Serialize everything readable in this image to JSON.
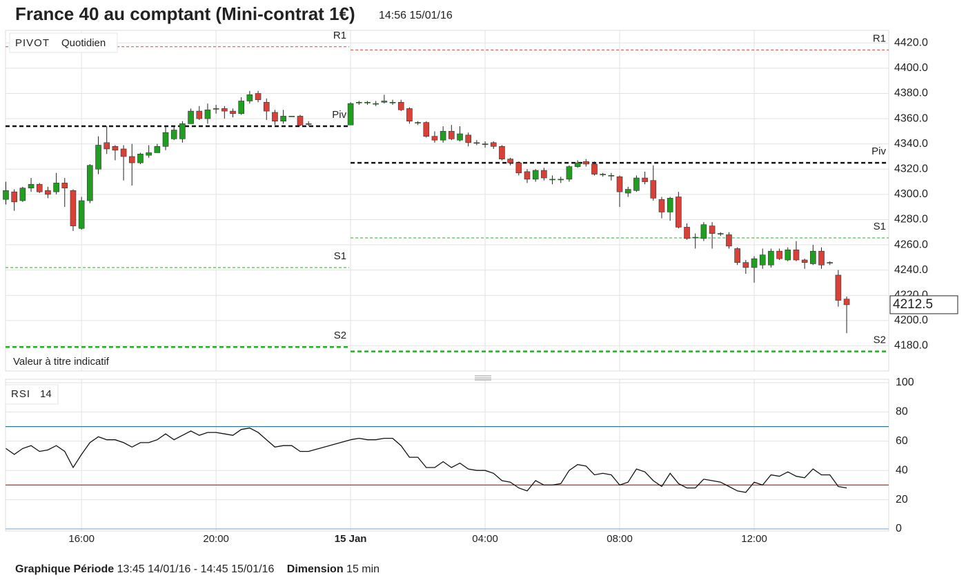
{
  "header": {
    "title": "France 40 au comptant (Mini-contrat 1€)",
    "timestamp": "14:56 15/01/16"
  },
  "chart_data": [
    {
      "type": "candlestick",
      "legend_box": {
        "study": "PIVOT",
        "period": "Quotidien"
      },
      "note": "Valeur à titre indicatif",
      "x": [
        13.75,
        14,
        14.25,
        14.5,
        14.75,
        15,
        15.25,
        15.5,
        15.75,
        16,
        16.25,
        16.5,
        16.75,
        17,
        17.25,
        17.5,
        17.75,
        18,
        18.25,
        18.5,
        18.75,
        19,
        19.25,
        19.5,
        19.75,
        20,
        20.25,
        20.5,
        20.75,
        21,
        21.25,
        21.5,
        21.75,
        22,
        22.25,
        22.5,
        22.75,
        24,
        24.25,
        24.5,
        24.75,
        25,
        25.25,
        25.5,
        25.75,
        26,
        26.25,
        26.5,
        26.75,
        27,
        27.25,
        27.5,
        27.75,
        28,
        28.25,
        28.5,
        28.75,
        29,
        29.25,
        29.5,
        29.75,
        30,
        30.25,
        30.5,
        30.75,
        31,
        31.25,
        31.5,
        31.75,
        32,
        32.25,
        32.5,
        32.75,
        33,
        33.25,
        33.5,
        33.75,
        34,
        34.25,
        34.5,
        34.75,
        35,
        35.25,
        35.5,
        35.75,
        36,
        36.25,
        36.5,
        36.75,
        37,
        37.25,
        37.5,
        37.75,
        38,
        38.25,
        38.5,
        38.75
      ],
      "open": [
        4296,
        4302,
        4295,
        4305,
        4308,
        4303,
        4302,
        4309,
        4303,
        4273,
        4295,
        4320,
        4341,
        4338,
        4336,
        4330,
        4325,
        4331,
        4333,
        4338,
        4344,
        4344,
        4356,
        4366,
        4360,
        4368,
        4368,
        4366,
        4364,
        4374,
        4380,
        4373,
        4365,
        4358,
        4362,
        4362,
        4356,
        4355,
        4373,
        4373,
        4372,
        4373,
        4373,
        4373,
        4368,
        4357,
        4357,
        4346,
        4343,
        4350,
        4343,
        4347,
        4341,
        4340,
        4341,
        4338,
        4328,
        4325,
        4318,
        4312,
        4319,
        4312,
        4312,
        4312,
        4322,
        4326,
        4324,
        4316,
        4315,
        4314,
        4301,
        4303,
        4313,
        4311,
        4296,
        4286,
        4298,
        4274,
        4266,
        4265,
        4275,
        4269,
        4268,
        4257,
        4246,
        4242,
        4244,
        4244,
        4255,
        4248,
        4256,
        4248,
        4245,
        4255,
        4246,
        4236,
        4217
      ],
      "high": [
        4310,
        4304,
        4306,
        4313,
        4309,
        4306,
        4317,
        4313,
        4304,
        4298,
        4324,
        4346,
        4354,
        4339,
        4339,
        4340,
        4333,
        4339,
        4340,
        4354,
        4354,
        4358,
        4368,
        4370,
        4372,
        4371,
        4370,
        4368,
        4377,
        4382,
        4382,
        4376,
        4367,
        4367,
        4362,
        4363,
        4358,
        4373,
        4374,
        4374,
        4374,
        4379,
        4375,
        4375,
        4369,
        4358,
        4358,
        4350,
        4354,
        4355,
        4354,
        4349,
        4343,
        4342,
        4342,
        4339,
        4329,
        4326,
        4320,
        4320,
        4321,
        4315,
        4314,
        4323,
        4327,
        4328,
        4326,
        4317,
        4317,
        4315,
        4306,
        4315,
        4318,
        4323,
        4298,
        4298,
        4302,
        4277,
        4269,
        4278,
        4278,
        4270,
        4270,
        4258,
        4248,
        4251,
        4257,
        4257,
        4257,
        4258,
        4263,
        4249,
        4260,
        4258,
        4247,
        4240,
        4219
      ],
      "low": [
        4292,
        4287,
        4294,
        4302,
        4301,
        4297,
        4300,
        4290,
        4271,
        4272,
        4293,
        4316,
        4332,
        4327,
        4311,
        4307,
        4324,
        4329,
        4333,
        4335,
        4343,
        4341,
        4356,
        4359,
        4356,
        4364,
        4360,
        4361,
        4363,
        4372,
        4373,
        4359,
        4355,
        4356,
        4362,
        4354,
        4354,
        4355,
        4371,
        4371,
        4370,
        4372,
        4371,
        4366,
        4356,
        4355,
        4345,
        4341,
        4341,
        4343,
        4342,
        4338,
        4339,
        4337,
        4336,
        4327,
        4323,
        4315,
        4309,
        4310,
        4311,
        4308,
        4309,
        4310,
        4321,
        4322,
        4315,
        4314,
        4311,
        4290,
        4298,
        4302,
        4308,
        4295,
        4281,
        4279,
        4273,
        4264,
        4257,
        4263,
        4257,
        4267,
        4257,
        4244,
        4237,
        4230,
        4241,
        4242,
        4248,
        4247,
        4247,
        4241,
        4244,
        4241,
        4244,
        4211,
        4190
      ],
      "close": [
        4303,
        4294,
        4305,
        4308,
        4302,
        4300,
        4309,
        4305,
        4275,
        4295,
        4323,
        4339,
        4336,
        4335,
        4330,
        4325,
        4332,
        4333,
        4338,
        4349,
        4351,
        4356,
        4366,
        4360,
        4367,
        4368,
        4366,
        4364,
        4374,
        4379,
        4375,
        4366,
        4358,
        4362,
        4362,
        4355,
        4356,
        4372,
        4373,
        4373,
        4372,
        4374,
        4373,
        4367,
        4358,
        4357,
        4346,
        4343,
        4350,
        4344,
        4348,
        4341,
        4341,
        4340,
        4338,
        4328,
        4325,
        4317,
        4312,
        4319,
        4313,
        4312,
        4312,
        4322,
        4325,
        4324,
        4316,
        4316,
        4315,
        4302,
        4304,
        4313,
        4310,
        4297,
        4286,
        4297,
        4274,
        4265,
        4266,
        4276,
        4269,
        4269,
        4259,
        4246,
        4242,
        4249,
        4252,
        4255,
        4249,
        4256,
        4248,
        4246,
        4255,
        4244,
        4246,
        4216,
        4212.5
      ],
      "up_color": "#1f9e1f",
      "down_color": "#d94038",
      "pivots": [
        {
          "name": "R1",
          "color": "#e0403a",
          "width": 1,
          "values": [
            4417,
            4414.5
          ]
        },
        {
          "name": "Piv",
          "color": "#111111",
          "width": 2.5,
          "values": [
            4354,
            4325
          ]
        },
        {
          "name": "S1",
          "color": "#22b022",
          "width": 1,
          "values": [
            4242,
            4265.5
          ]
        },
        {
          "name": "S2",
          "color": "#22b022",
          "width": 2.5,
          "values": [
            4179,
            4175.5
          ]
        }
      ],
      "xlim": [
        13.74,
        40
      ],
      "xticks": [
        {
          "value": 16,
          "label": "16:00"
        },
        {
          "value": 20,
          "label": "20:00"
        },
        {
          "value": 24,
          "label": "15 Jan"
        },
        {
          "value": 28,
          "label": "04:00"
        },
        {
          "value": 32,
          "label": "08:00"
        },
        {
          "value": 36,
          "label": "12:00"
        }
      ],
      "ylim": [
        4160,
        4430
      ],
      "yticks": [
        {
          "value": 4180,
          "label": "4180.0"
        },
        {
          "value": 4200,
          "label": "4200.0"
        },
        {
          "value": 4220,
          "label": "4220.0"
        },
        {
          "value": 4240,
          "label": "4240.0"
        },
        {
          "value": 4260,
          "label": "4260.0"
        },
        {
          "value": 4280,
          "label": "4280.0"
        },
        {
          "value": 4300,
          "label": "4300.0"
        },
        {
          "value": 4320,
          "label": "4320.0"
        },
        {
          "value": 4340,
          "label": "4340.0"
        },
        {
          "value": 4360,
          "label": "4360.0"
        },
        {
          "value": 4380,
          "label": "4380.0"
        },
        {
          "value": 4400,
          "label": "4400.0"
        },
        {
          "value": 4420,
          "label": "4420.0"
        }
      ],
      "grid": true
    },
    {
      "type": "line",
      "legend_box": {
        "study": "RSI",
        "period": "14"
      },
      "values": [
        55,
        51,
        55,
        57,
        53,
        54,
        57,
        53,
        42,
        51,
        59,
        63,
        61,
        61,
        59,
        56,
        59,
        59,
        61,
        65,
        61,
        64,
        67,
        64,
        66,
        66,
        65,
        64,
        68,
        69,
        66,
        61,
        56,
        57,
        57,
        53,
        53,
        61,
        62,
        61,
        61,
        62,
        62,
        57,
        49,
        49,
        42,
        42,
        46,
        42,
        45,
        41,
        40,
        40,
        38,
        33,
        32,
        28,
        26,
        33,
        30,
        30,
        31,
        40,
        44,
        43,
        37,
        38,
        37,
        30,
        32,
        41,
        39,
        33,
        29,
        38,
        31,
        28,
        28,
        34,
        33,
        32,
        29,
        26,
        25,
        32,
        30,
        37,
        36,
        39,
        36,
        35,
        41,
        37,
        37,
        29,
        28
      ],
      "color": "#111111",
      "levels": [
        {
          "value": 70,
          "color": "#2b7a8c"
        },
        {
          "value": 30,
          "color": "#d42020"
        }
      ],
      "ylim": [
        0,
        100
      ],
      "yticks": [
        0,
        20,
        40,
        60,
        80,
        100
      ],
      "grid": true
    }
  ],
  "footer": {
    "period_label": "Graphique Période",
    "period": "13:45 14/01/16 - 14:45 15/01/16",
    "dimension_label": "Dimension",
    "dimension": "15 min"
  }
}
